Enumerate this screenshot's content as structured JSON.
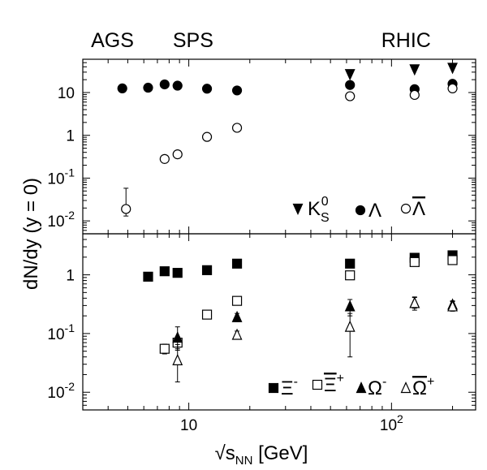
{
  "chart_data": [
    {
      "type": "scatter",
      "panel": "top",
      "x_scale": "log",
      "y_scale": "log",
      "xlim": [
        3,
        260
      ],
      "ylim": [
        0.005,
        60
      ],
      "ylabel": "dN/dy (y = 0)",
      "y_ticks": [
        {
          "value": 10,
          "mant": "10",
          "exp": ""
        },
        {
          "value": 1,
          "mant": "1",
          "exp": ""
        },
        {
          "value": 0.1,
          "mant": "10",
          "exp": "-1"
        },
        {
          "value": 0.01,
          "mant": "10",
          "exp": "-2"
        }
      ],
      "energy_labels": [
        {
          "text": "AGS",
          "x": 4.2
        },
        {
          "text": "SPS",
          "x": 10.5
        },
        {
          "text": "RHIC",
          "x": 118
        }
      ],
      "series": [
        {
          "name": "K_S^0",
          "legend_main": "K",
          "legend_sub": "S",
          "legend_sup": "0",
          "marker": "triangle-down-filled",
          "points": [
            {
              "x": 62.4,
              "y": 27
            },
            {
              "x": 130,
              "y": 35
            },
            {
              "x": 200,
              "y": 38
            }
          ]
        },
        {
          "name": "Λ",
          "legend_main": "Λ",
          "legend_sup": "",
          "marker": "circle-filled",
          "points": [
            {
              "x": 4.7,
              "y": 12.5
            },
            {
              "x": 6.3,
              "y": 13
            },
            {
              "x": 7.6,
              "y": 15.5
            },
            {
              "x": 8.8,
              "y": 14.5
            },
            {
              "x": 12.3,
              "y": 12.3
            },
            {
              "x": 17.3,
              "y": 11.2
            },
            {
              "x": 62.4,
              "y": 15
            },
            {
              "x": 130,
              "y": 12
            },
            {
              "x": 200,
              "y": 16
            }
          ]
        },
        {
          "name": "anti-Λ",
          "legend_main": "Λ",
          "legend_overline": true,
          "legend_sup": "",
          "marker": "circle-open",
          "points": [
            {
              "x": 4.9,
              "y": 0.019,
              "yerr_low": 0.013,
              "yerr_high": 0.058
            },
            {
              "x": 7.6,
              "y": 0.28
            },
            {
              "x": 8.8,
              "y": 0.36
            },
            {
              "x": 12.3,
              "y": 0.92
            },
            {
              "x": 17.3,
              "y": 1.5
            },
            {
              "x": 62.4,
              "y": 8.2
            },
            {
              "x": 130,
              "y": 8.8
            },
            {
              "x": 200,
              "y": 12.5
            }
          ]
        }
      ]
    },
    {
      "type": "scatter",
      "panel": "bottom",
      "x_scale": "log",
      "y_scale": "log",
      "xlim": [
        3,
        260
      ],
      "ylim": [
        0.005,
        5
      ],
      "xlabel": "√sNN [GeV]",
      "xlabel_root": "√",
      "xlabel_main": "s",
      "xlabel_sub": "NN",
      "xlabel_unit": " [GeV]",
      "x_ticks": [
        {
          "value": 10,
          "mant": "10",
          "exp": ""
        },
        {
          "value": 100,
          "mant": "10",
          "exp": "2"
        }
      ],
      "y_ticks": [
        {
          "value": 1,
          "mant": "1",
          "exp": ""
        },
        {
          "value": 0.1,
          "mant": "10",
          "exp": "-1"
        },
        {
          "value": 0.01,
          "mant": "10",
          "exp": "-2"
        }
      ],
      "series": [
        {
          "name": "Ξ⁻",
          "legend_main": "Ξ",
          "legend_sup": "-",
          "marker": "square-filled",
          "points": [
            {
              "x": 6.3,
              "y": 0.93
            },
            {
              "x": 7.6,
              "y": 1.15
            },
            {
              "x": 8.8,
              "y": 1.08
            },
            {
              "x": 12.3,
              "y": 1.2
            },
            {
              "x": 17.3,
              "y": 1.55
            },
            {
              "x": 62.4,
              "y": 1.55
            },
            {
              "x": 130,
              "y": 1.95
            },
            {
              "x": 200,
              "y": 2.15
            }
          ]
        },
        {
          "name": "anti-Ξ⁺",
          "legend_main": "Ξ",
          "legend_overline": true,
          "legend_sup": "+",
          "marker": "square-open",
          "points": [
            {
              "x": 7.6,
              "y": 0.055,
              "yerr_low": 0.045,
              "yerr_high": 0.066
            },
            {
              "x": 8.8,
              "y": 0.07,
              "yerr_low": 0.052,
              "yerr_high": 0.088
            },
            {
              "x": 12.3,
              "y": 0.21
            },
            {
              "x": 17.3,
              "y": 0.36
            },
            {
              "x": 62.4,
              "y": 0.98
            },
            {
              "x": 130,
              "y": 1.65
            },
            {
              "x": 200,
              "y": 1.78
            }
          ]
        },
        {
          "name": "Ω⁻",
          "legend_main": "Ω",
          "legend_sup": "-",
          "marker": "triangle-up-filled",
          "points": [
            {
              "x": 8.8,
              "y": 0.085,
              "yerr_low": 0.055,
              "yerr_high": 0.13
            },
            {
              "x": 17.3,
              "y": 0.19,
              "yerr_low": 0.16,
              "yerr_high": 0.22
            },
            {
              "x": 62.4,
              "y": 0.29,
              "yerr_low": 0.2,
              "yerr_high": 0.38
            },
            {
              "x": 130,
              "y": 0.33,
              "yerr_low": 0.27,
              "yerr_high": 0.41
            },
            {
              "x": 200,
              "y": 0.31,
              "yerr_low": 0.26,
              "yerr_high": 0.36
            }
          ]
        },
        {
          "name": "anti-Ω⁺",
          "legend_main": "Ω",
          "legend_overline": true,
          "legend_sup": "+",
          "marker": "triangle-up-open",
          "points": [
            {
              "x": 8.8,
              "y": 0.035,
              "yerr_low": 0.015,
              "yerr_high": 0.065
            },
            {
              "x": 17.3,
              "y": 0.095,
              "yerr_low": 0.08,
              "yerr_high": 0.11
            },
            {
              "x": 62.4,
              "y": 0.13,
              "yerr_low": 0.04,
              "yerr_high": 0.22
            },
            {
              "x": 130,
              "y": 0.33,
              "yerr_low": 0.25,
              "yerr_high": 0.42
            },
            {
              "x": 200,
              "y": 0.29,
              "yerr_low": 0.24,
              "yerr_high": 0.35
            }
          ]
        }
      ]
    }
  ]
}
